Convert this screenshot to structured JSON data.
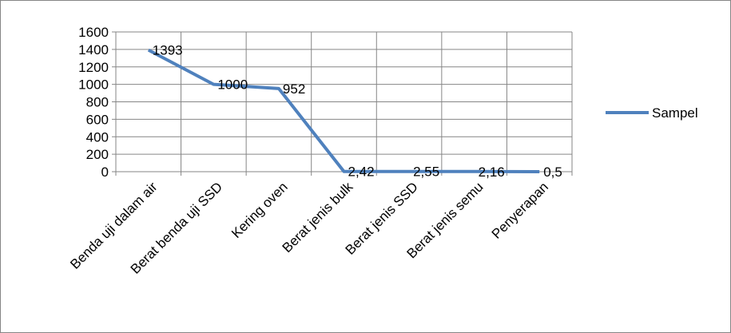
{
  "chart_data": {
    "type": "line",
    "categories": [
      "Benda uji dalam air",
      "Berat benda uji SSD",
      "Kering oven",
      "Berat jenis bulk",
      "Berat jenis SSD",
      "Berat jenis semu",
      "Penyerapan"
    ],
    "series": [
      {
        "name": "Sampel",
        "values": [
          1393,
          1000,
          952,
          2.42,
          2.55,
          2.16,
          0.5
        ],
        "labels": [
          "1393",
          "1000",
          "952",
          "2,42",
          "2,55",
          "2,16",
          "0,5"
        ],
        "color": "#4F81BD"
      }
    ],
    "y_ticks": [
      "0",
      "200",
      "400",
      "600",
      "800",
      "1000",
      "1200",
      "1400",
      "1600"
    ],
    "ylim": [
      0,
      1600
    ],
    "grid": true,
    "legend": "right"
  }
}
